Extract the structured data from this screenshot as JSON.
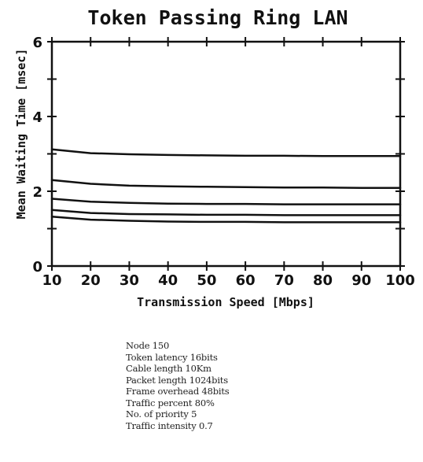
{
  "chart_data": {
    "type": "line",
    "title": "Token Passing Ring LAN",
    "xlabel": "Transmission Speed [Mbps]",
    "ylabel": "Mean Waiting Time [msec]",
    "xlim": [
      10,
      100
    ],
    "ylim": [
      0,
      6
    ],
    "xticks": [
      10,
      20,
      30,
      40,
      50,
      60,
      70,
      80,
      90,
      100
    ],
    "yticks": [
      0,
      2,
      4,
      6
    ],
    "grid": false,
    "legend": "none",
    "line_color": "#111111",
    "x": [
      10,
      20,
      30,
      40,
      50,
      60,
      70,
      80,
      90,
      100
    ],
    "series": [
      {
        "values": [
          3.12,
          3.02,
          2.99,
          2.97,
          2.96,
          2.95,
          2.95,
          2.94,
          2.94,
          2.94
        ]
      },
      {
        "values": [
          2.3,
          2.2,
          2.15,
          2.13,
          2.12,
          2.11,
          2.1,
          2.1,
          2.09,
          2.09
        ]
      },
      {
        "values": [
          1.8,
          1.72,
          1.69,
          1.67,
          1.66,
          1.66,
          1.65,
          1.65,
          1.65,
          1.65
        ]
      },
      {
        "values": [
          1.5,
          1.42,
          1.39,
          1.38,
          1.37,
          1.37,
          1.36,
          1.36,
          1.36,
          1.36
        ]
      },
      {
        "values": [
          1.32,
          1.24,
          1.21,
          1.19,
          1.18,
          1.18,
          1.17,
          1.17,
          1.17,
          1.17
        ]
      }
    ]
  },
  "parameters": [
    "Node 150",
    "Token latency 16bits",
    "Cable length 10Km",
    "Packet length 1024bits",
    "Frame overhead 48bits",
    "Traffic percent 80%",
    "No. of priority 5",
    "Traffic intensity 0.7"
  ]
}
